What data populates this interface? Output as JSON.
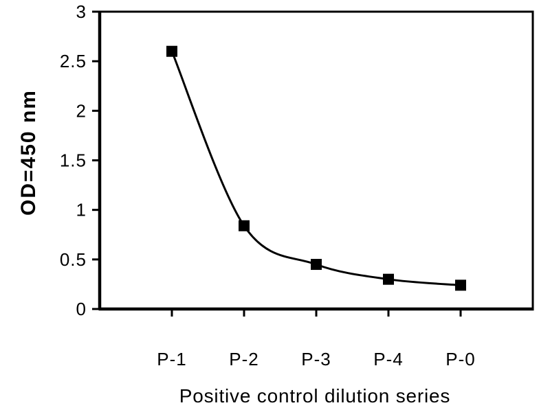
{
  "figure": {
    "background": "#ffffff"
  },
  "chart_data": {
    "type": "line",
    "title": "",
    "xlabel": "Positive control dilution series",
    "ylabel": "OD=450 nm",
    "categories": [
      "P-1",
      "P-2",
      "P-3",
      "P-4",
      "P-0"
    ],
    "series": [
      {
        "name": "Positive control dilution series",
        "values": [
          2.6,
          0.84,
          0.45,
          0.3,
          0.24
        ],
        "color": "#000000",
        "marker": "filled-square",
        "smooth": true
      }
    ],
    "ylim": [
      0,
      3
    ],
    "yticks": [
      0,
      0.5,
      1,
      1.5,
      2,
      2.5,
      3
    ],
    "ytick_labels": [
      "0",
      "0.5",
      "1",
      "1.5",
      "2",
      "2.5",
      "3"
    ],
    "grid": false,
    "legend": "none",
    "plot_border": true,
    "axis_color": "#000000",
    "text_color": "#000000"
  }
}
